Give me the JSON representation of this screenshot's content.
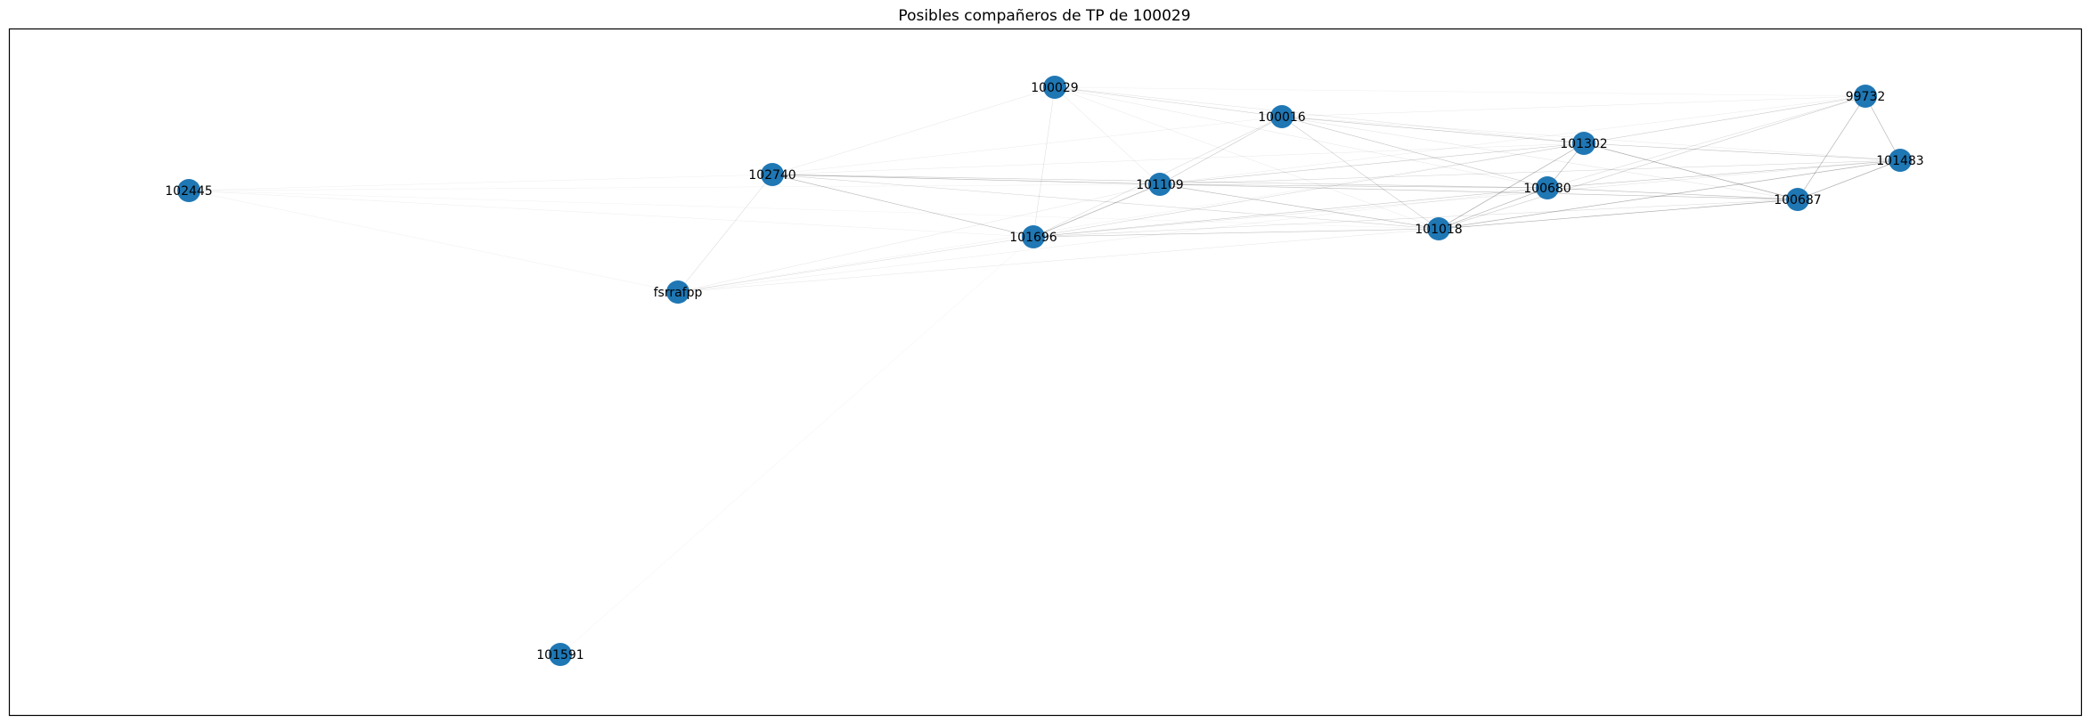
{
  "title": "Posibles compañeros de TP de 100029",
  "colors": {
    "node": "#1f77b4",
    "edge": "#000000",
    "frame": "#000000"
  },
  "nodes": [
    {
      "id": "100029",
      "label": "100029"
    },
    {
      "id": "100016",
      "label": "100016"
    },
    {
      "id": "99732",
      "label": "99732"
    },
    {
      "id": "101302",
      "label": "101302"
    },
    {
      "id": "101483",
      "label": "101483"
    },
    {
      "id": "102740",
      "label": "102740"
    },
    {
      "id": "101109",
      "label": "101109"
    },
    {
      "id": "100680",
      "label": "100680"
    },
    {
      "id": "100687",
      "label": "100687"
    },
    {
      "id": "102445",
      "label": "102445"
    },
    {
      "id": "101696",
      "label": "101696"
    },
    {
      "id": "101018",
      "label": "101018"
    },
    {
      "id": "fsrrafpp",
      "label": "fsrrafpp"
    },
    {
      "id": "101591",
      "label": "101591"
    }
  ],
  "edges": [
    {
      "source": "100029",
      "target": "100016",
      "weight": 0.25
    },
    {
      "source": "100029",
      "target": "99732",
      "weight": 0.05
    },
    {
      "source": "100029",
      "target": "101302",
      "weight": 0.15
    },
    {
      "source": "100029",
      "target": "102740",
      "weight": 0.12
    },
    {
      "source": "100029",
      "target": "101109",
      "weight": 0.15
    },
    {
      "source": "100029",
      "target": "101696",
      "weight": 0.18
    },
    {
      "source": "100029",
      "target": "100680",
      "weight": 0.12
    },
    {
      "source": "100029",
      "target": "101018",
      "weight": 0.1
    },
    {
      "source": "100016",
      "target": "99732",
      "weight": 0.1
    },
    {
      "source": "100016",
      "target": "101302",
      "weight": 0.35
    },
    {
      "source": "100016",
      "target": "101109",
      "weight": 0.3
    },
    {
      "source": "100016",
      "target": "100680",
      "weight": 0.35
    },
    {
      "source": "100016",
      "target": "101018",
      "weight": 0.3
    },
    {
      "source": "100016",
      "target": "101696",
      "weight": 0.2
    },
    {
      "source": "100016",
      "target": "100687",
      "weight": 0.15
    },
    {
      "source": "100016",
      "target": "101483",
      "weight": 0.1
    },
    {
      "source": "100016",
      "target": "102740",
      "weight": 0.08
    },
    {
      "source": "99732",
      "target": "101302",
      "weight": 0.3
    },
    {
      "source": "99732",
      "target": "101483",
      "weight": 0.45
    },
    {
      "source": "99732",
      "target": "100687",
      "weight": 0.45
    },
    {
      "source": "99732",
      "target": "101018",
      "weight": 0.3
    },
    {
      "source": "99732",
      "target": "100680",
      "weight": 0.2
    },
    {
      "source": "99732",
      "target": "101109",
      "weight": 0.1
    },
    {
      "source": "101302",
      "target": "101483",
      "weight": 0.35
    },
    {
      "source": "101302",
      "target": "100680",
      "weight": 0.4
    },
    {
      "source": "101302",
      "target": "100687",
      "weight": 0.5
    },
    {
      "source": "101302",
      "target": "101018",
      "weight": 0.5
    },
    {
      "source": "101302",
      "target": "101109",
      "weight": 0.3
    },
    {
      "source": "101302",
      "target": "101696",
      "weight": 0.25
    },
    {
      "source": "101302",
      "target": "102740",
      "weight": 0.1
    },
    {
      "source": "101302",
      "target": "fsrrafpp",
      "weight": 0.06
    },
    {
      "source": "101483",
      "target": "100687",
      "weight": 0.5
    },
    {
      "source": "101483",
      "target": "101018",
      "weight": 0.45
    },
    {
      "source": "101483",
      "target": "100680",
      "weight": 0.35
    },
    {
      "source": "101483",
      "target": "101109",
      "weight": 0.25
    },
    {
      "source": "101483",
      "target": "101696",
      "weight": 0.15
    },
    {
      "source": "102740",
      "target": "101109",
      "weight": 0.35
    },
    {
      "source": "102740",
      "target": "101696",
      "weight": 0.4
    },
    {
      "source": "102740",
      "target": "100680",
      "weight": 0.3
    },
    {
      "source": "102740",
      "target": "101018",
      "weight": 0.25
    },
    {
      "source": "102740",
      "target": "fsrrafpp",
      "weight": 0.2
    },
    {
      "source": "102740",
      "target": "102445",
      "weight": 0.05
    },
    {
      "source": "102740",
      "target": "100687",
      "weight": 0.15
    },
    {
      "source": "101109",
      "target": "101696",
      "weight": 0.5
    },
    {
      "source": "101109",
      "target": "100680",
      "weight": 0.35
    },
    {
      "source": "101109",
      "target": "101018",
      "weight": 0.4
    },
    {
      "source": "101109",
      "target": "100687",
      "weight": 0.25
    },
    {
      "source": "101109",
      "target": "fsrrafpp",
      "weight": 0.12
    },
    {
      "source": "101109",
      "target": "102445",
      "weight": 0.05
    },
    {
      "source": "100680",
      "target": "101018",
      "weight": 0.45
    },
    {
      "source": "100680",
      "target": "100687",
      "weight": 0.4
    },
    {
      "source": "100680",
      "target": "101696",
      "weight": 0.3
    },
    {
      "source": "100687",
      "target": "101018",
      "weight": 0.5
    },
    {
      "source": "100687",
      "target": "101696",
      "weight": 0.2
    },
    {
      "source": "101696",
      "target": "101018",
      "weight": 0.35
    },
    {
      "source": "101696",
      "target": "fsrrafpp",
      "weight": 0.2
    },
    {
      "source": "101696",
      "target": "102445",
      "weight": 0.06
    },
    {
      "source": "101018",
      "target": "fsrrafpp",
      "weight": 0.12
    },
    {
      "source": "100680",
      "target": "fsrrafpp",
      "weight": 0.08
    },
    {
      "source": "102445",
      "target": "fsrrafpp",
      "weight": 0.05
    },
    {
      "source": "102445",
      "target": "101018",
      "weight": 0.04
    },
    {
      "source": "101591",
      "target": "101696",
      "weight": 0.04
    }
  ]
}
